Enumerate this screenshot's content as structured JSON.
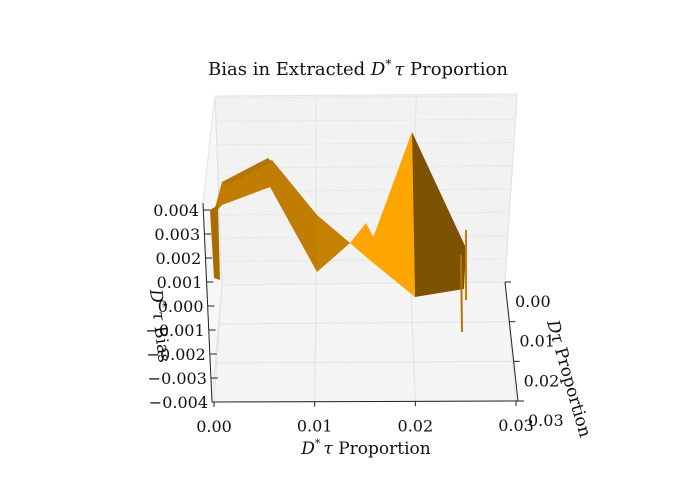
{
  "chart_data": {
    "type": "surface3d",
    "title": "Bias in Extracted D* τ Proportion",
    "title_parts": {
      "pre": "Bias in Extracted ",
      "d": "D",
      "star": "*",
      "tau": "τ",
      "post": " Proportion"
    },
    "x_axis": {
      "label": "D* τ Proportion",
      "label_parts": {
        "d": "D",
        "star": "*",
        "tau": "τ",
        "post": " Proportion"
      },
      "ticks": [
        "0.00",
        "0.01",
        "0.02",
        "0.03"
      ],
      "range": [
        0,
        0.03
      ]
    },
    "y_axis": {
      "label": "Dτ Proportion",
      "label_parts": {
        "d": "D",
        "tau": "τ",
        "post": " Proportion"
      },
      "ticks": [
        "0.00",
        "0.01",
        "0.02",
        "0.03"
      ],
      "range": [
        0,
        0.03
      ]
    },
    "z_axis": {
      "label": "D* τ Bias",
      "label_parts": {
        "d": "D",
        "star": "*",
        "tau": "τ",
        "post": " Bias"
      },
      "ticks": [
        "0.004",
        "0.003",
        "0.002",
        "0.001",
        "0.000",
        "−0.001",
        "−0.002",
        "−0.003",
        "−0.004"
      ],
      "range": [
        -0.004,
        0.004
      ]
    },
    "surface_profile": [
      {
        "x": 0.0,
        "z": 0.004
      },
      {
        "x": 0.005,
        "z": 0.0046
      },
      {
        "x": 0.01,
        "z": -0.0002
      },
      {
        "x": 0.015,
        "z": 0.0012
      },
      {
        "x": 0.02,
        "z": -0.0011
      },
      {
        "x": 0.0255,
        "z": 0.0012
      }
    ],
    "colors": {
      "surface_light": "#ffa500",
      "surface_mid": "#d48a00",
      "surface_dark": "#8a5a00",
      "pane": "#f2f2f2",
      "grid": "#e6e6e6"
    },
    "grid": true
  }
}
